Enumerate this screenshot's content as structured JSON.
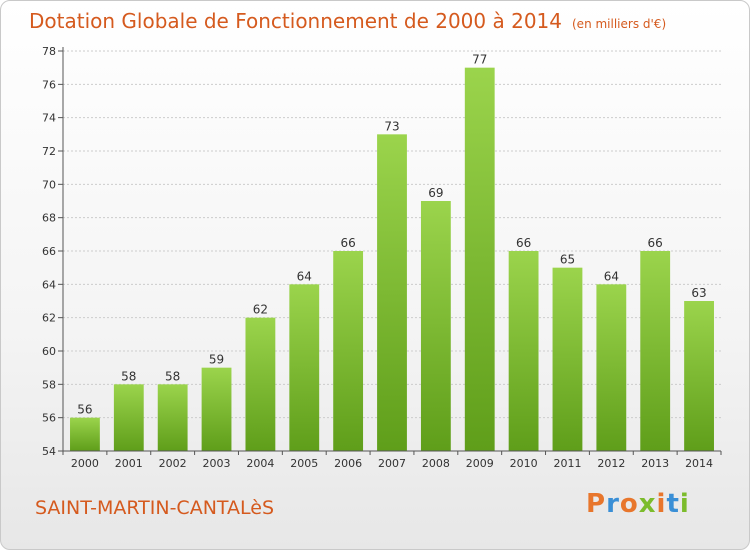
{
  "title": "Dotation Globale de Fonctionnement de 2000 à 2014",
  "unit": "(en milliers d'€)",
  "commune": "SAINT-MARTIN-CANTALèS",
  "logo": {
    "text": "Proxiti",
    "colors": [
      "#e8762c",
      "#3a8fd6",
      "#e8762c",
      "#7cbc2c",
      "#e8762c",
      "#3a8fd6",
      "#7cbc2c"
    ]
  },
  "colors": {
    "title": "#d55a1e",
    "bar_light": "#9bd44c",
    "bar_dark": "#5f9e1a",
    "grid": "#cccccc"
  },
  "chart_data": {
    "type": "bar",
    "categories": [
      "2000",
      "2001",
      "2002",
      "2003",
      "2004",
      "2005",
      "2006",
      "2007",
      "2008",
      "2009",
      "2010",
      "2011",
      "2012",
      "2013",
      "2014"
    ],
    "values": [
      56,
      58,
      58,
      59,
      62,
      64,
      66,
      73,
      69,
      77,
      66,
      65,
      64,
      66,
      63
    ],
    "ylim": [
      54,
      78
    ],
    "yticks": [
      54,
      56,
      58,
      60,
      62,
      64,
      66,
      68,
      70,
      72,
      74,
      76,
      78
    ],
    "grid": true
  }
}
